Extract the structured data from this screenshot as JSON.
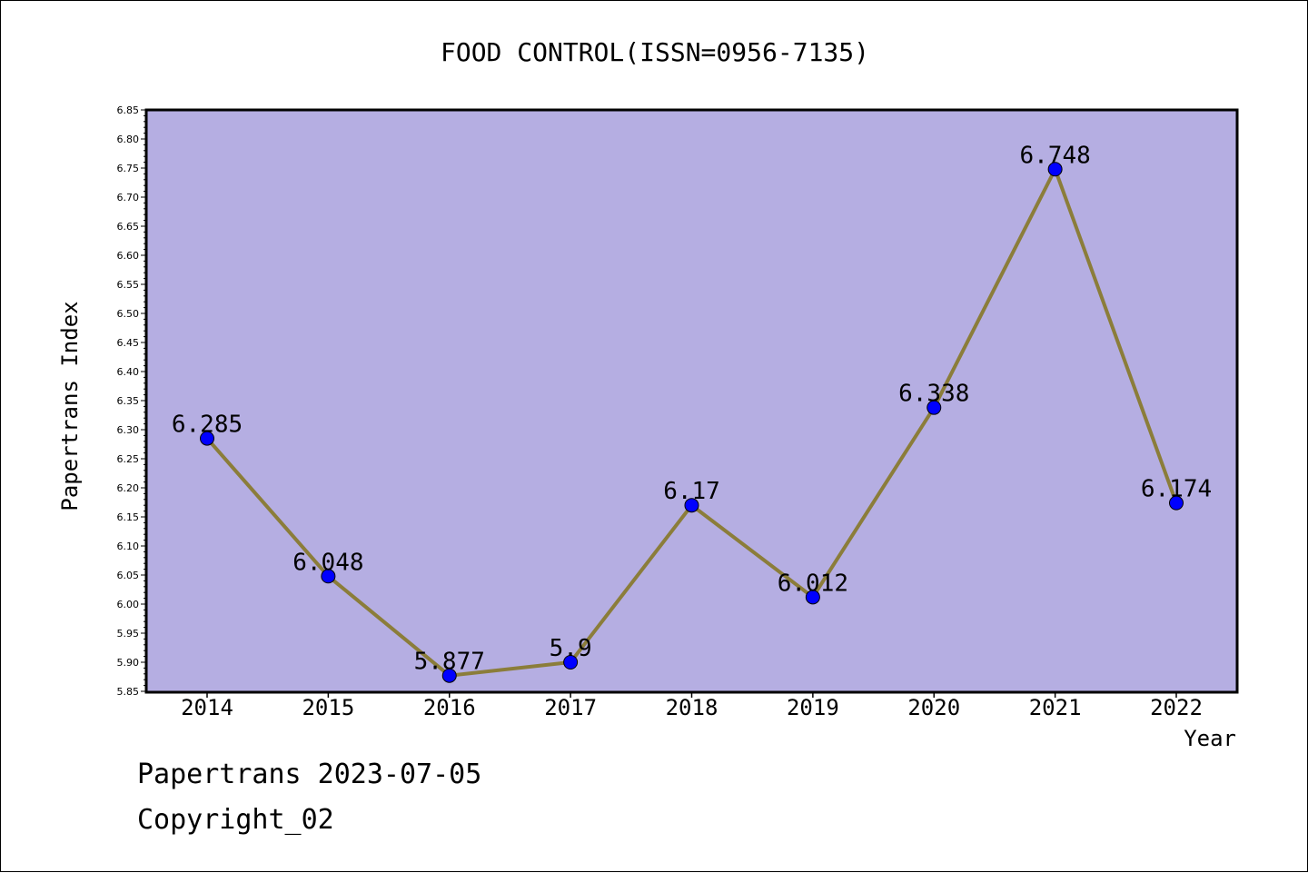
{
  "chart_data": {
    "type": "line",
    "title": "FOOD CONTROL(ISSN=0956-7135)",
    "xlabel": "Year",
    "ylabel": "Papertrans Index",
    "categories": [
      "2014",
      "2015",
      "2016",
      "2017",
      "2018",
      "2019",
      "2020",
      "2021",
      "2022"
    ],
    "series": [
      {
        "values": [
          6.285,
          6.048,
          5.877,
          5.9,
          6.17,
          6.012,
          6.338,
          6.748,
          6.174
        ],
        "data_labels": [
          "6.285",
          "6.048",
          "5.877",
          "5.9",
          "6.17",
          "6.012",
          "6.338",
          "6.748",
          "6.174"
        ]
      }
    ],
    "ylim": [
      5.85,
      6.85
    ],
    "y_ticks": [
      "5.85",
      "5.90",
      "5.95",
      "6.00",
      "6.05",
      "6.10",
      "6.15",
      "6.20",
      "6.25",
      "6.30",
      "6.35",
      "6.40",
      "6.45",
      "6.50",
      "6.55",
      "6.60",
      "6.65",
      "6.70",
      "6.75",
      "6.80",
      "6.85"
    ],
    "grid": false,
    "legend": "none",
    "colors": {
      "plot_background": "#b5aee2",
      "line": "#8b7d3a",
      "marker": "#0000ff"
    }
  },
  "footer": {
    "line1": "Papertrans 2023-07-05",
    "line2": "Copyright_02"
  }
}
